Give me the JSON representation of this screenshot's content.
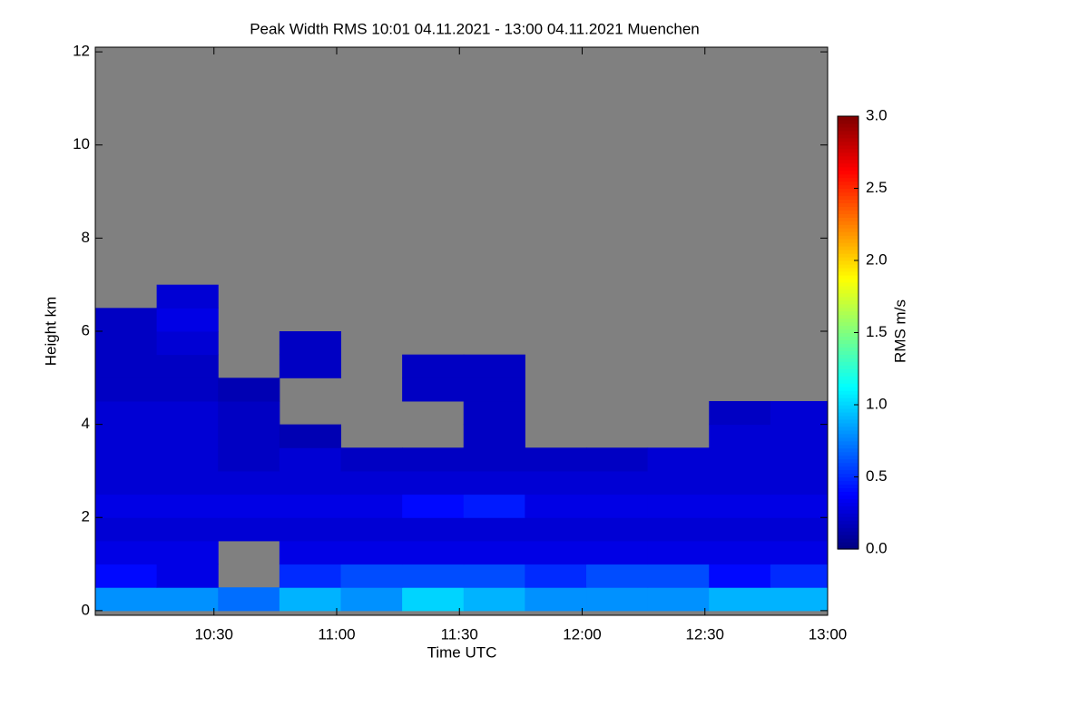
{
  "chart_data": {
    "type": "heatmap",
    "title": "Peak Width RMS   10:01 04.11.2021 - 13:00 04.11.2021 Muenchen",
    "x_label": "Time UTC",
    "y_label": "Height km",
    "colorbar_label": "RMS m/s",
    "xlim": [
      601,
      780
    ],
    "xticks": [
      {
        "value": 630,
        "label": "10:30"
      },
      {
        "value": 660,
        "label": "11:00"
      },
      {
        "value": 690,
        "label": "11:30"
      },
      {
        "value": 720,
        "label": "12:00"
      },
      {
        "value": 750,
        "label": "12:30"
      },
      {
        "value": 780,
        "label": "13:00"
      }
    ],
    "ylim": [
      -0.1,
      12.1
    ],
    "yticks": [
      0,
      2,
      4,
      6,
      8,
      10,
      12
    ],
    "zlim": [
      0,
      3
    ],
    "zticks": [
      {
        "value": 0,
        "label": "0.0"
      },
      0.5,
      {
        "value": 1,
        "label": "1.0"
      },
      1.5,
      {
        "value": 2,
        "label": "2.0"
      },
      2.5,
      {
        "value": 3,
        "label": "3.0"
      }
    ],
    "colormap": "jet",
    "missing_color": "#808080",
    "grid": false,
    "xbins": [
      601,
      616,
      631,
      646,
      661,
      676,
      691,
      706,
      721,
      736,
      751,
      766,
      780
    ],
    "ybins": [
      0,
      0.5,
      1,
      1.5,
      2,
      2.5,
      3,
      3.5,
      4,
      4.5,
      5,
      5.5,
      6,
      6.5,
      7
    ],
    "z": [
      [
        0.8,
        0.8,
        0.7,
        0.9,
        0.8,
        1.0,
        0.9,
        0.8,
        0.8,
        0.8,
        0.9,
        0.9
      ],
      [
        0.4,
        0.3,
        null,
        0.5,
        0.6,
        0.6,
        0.6,
        0.5,
        0.6,
        0.6,
        0.4,
        0.5
      ],
      [
        0.3,
        0.3,
        null,
        0.3,
        0.3,
        0.3,
        0.3,
        0.3,
        0.3,
        0.3,
        0.3,
        0.3
      ],
      [
        0.25,
        0.25,
        0.25,
        0.25,
        0.25,
        0.25,
        0.25,
        0.25,
        0.25,
        0.25,
        0.25,
        0.25
      ],
      [
        0.3,
        0.3,
        0.3,
        0.3,
        0.3,
        0.4,
        0.45,
        0.3,
        0.3,
        0.3,
        0.3,
        0.3
      ],
      [
        0.25,
        0.25,
        0.25,
        0.25,
        0.25,
        0.25,
        0.25,
        0.25,
        0.25,
        0.25,
        0.25,
        0.25
      ],
      [
        0.25,
        0.25,
        0.2,
        0.25,
        0.2,
        0.2,
        0.2,
        0.2,
        0.2,
        0.25,
        0.25,
        0.25
      ],
      [
        0.25,
        0.25,
        0.2,
        0.15,
        null,
        null,
        0.2,
        null,
        null,
        null,
        0.25,
        0.25
      ],
      [
        0.25,
        0.25,
        0.2,
        null,
        null,
        null,
        0.2,
        null,
        null,
        null,
        0.2,
        0.25
      ],
      [
        0.2,
        0.2,
        0.15,
        null,
        null,
        0.2,
        0.2,
        null,
        null,
        null,
        null,
        null
      ],
      [
        0.2,
        0.2,
        null,
        0.2,
        null,
        0.2,
        0.2,
        null,
        null,
        null,
        null,
        null
      ],
      [
        0.2,
        0.25,
        null,
        0.2,
        null,
        null,
        null,
        null,
        null,
        null,
        null,
        null
      ],
      [
        0.2,
        0.3,
        null,
        null,
        null,
        null,
        null,
        null,
        null,
        null,
        null,
        null
      ],
      [
        null,
        0.25,
        null,
        null,
        null,
        null,
        null,
        null,
        null,
        null,
        null,
        null
      ]
    ]
  }
}
